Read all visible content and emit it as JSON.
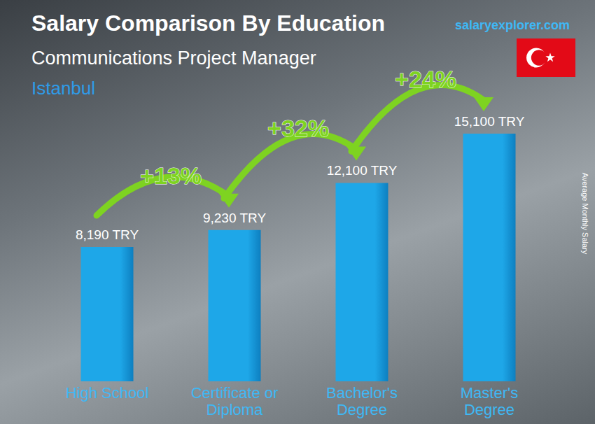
{
  "chart_data": {
    "type": "bar",
    "title": "Salary Comparison By Education",
    "subtitle": "Communications Project Manager",
    "location": "Istanbul",
    "source": "salaryexplorer.com",
    "y_label": "Average Monthly Salary",
    "categories": [
      "High School",
      "Certificate or\nDiploma",
      "Bachelor's\nDegree",
      "Master's\nDegree"
    ],
    "values": [
      8190,
      9230,
      12100,
      15100
    ],
    "value_labels": [
      "8,190 TRY",
      "9,230 TRY",
      "12,100 TRY",
      "15,100 TRY"
    ],
    "increases": [
      {
        "value": 13,
        "label": "+13%"
      },
      {
        "value": 32,
        "label": "+32%"
      },
      {
        "value": 24,
        "label": "+24%"
      }
    ],
    "color": "#1ea7e8",
    "ylim": [
      0,
      16000
    ],
    "grid": false,
    "tick_labels": "x",
    "data_labels": true
  }
}
